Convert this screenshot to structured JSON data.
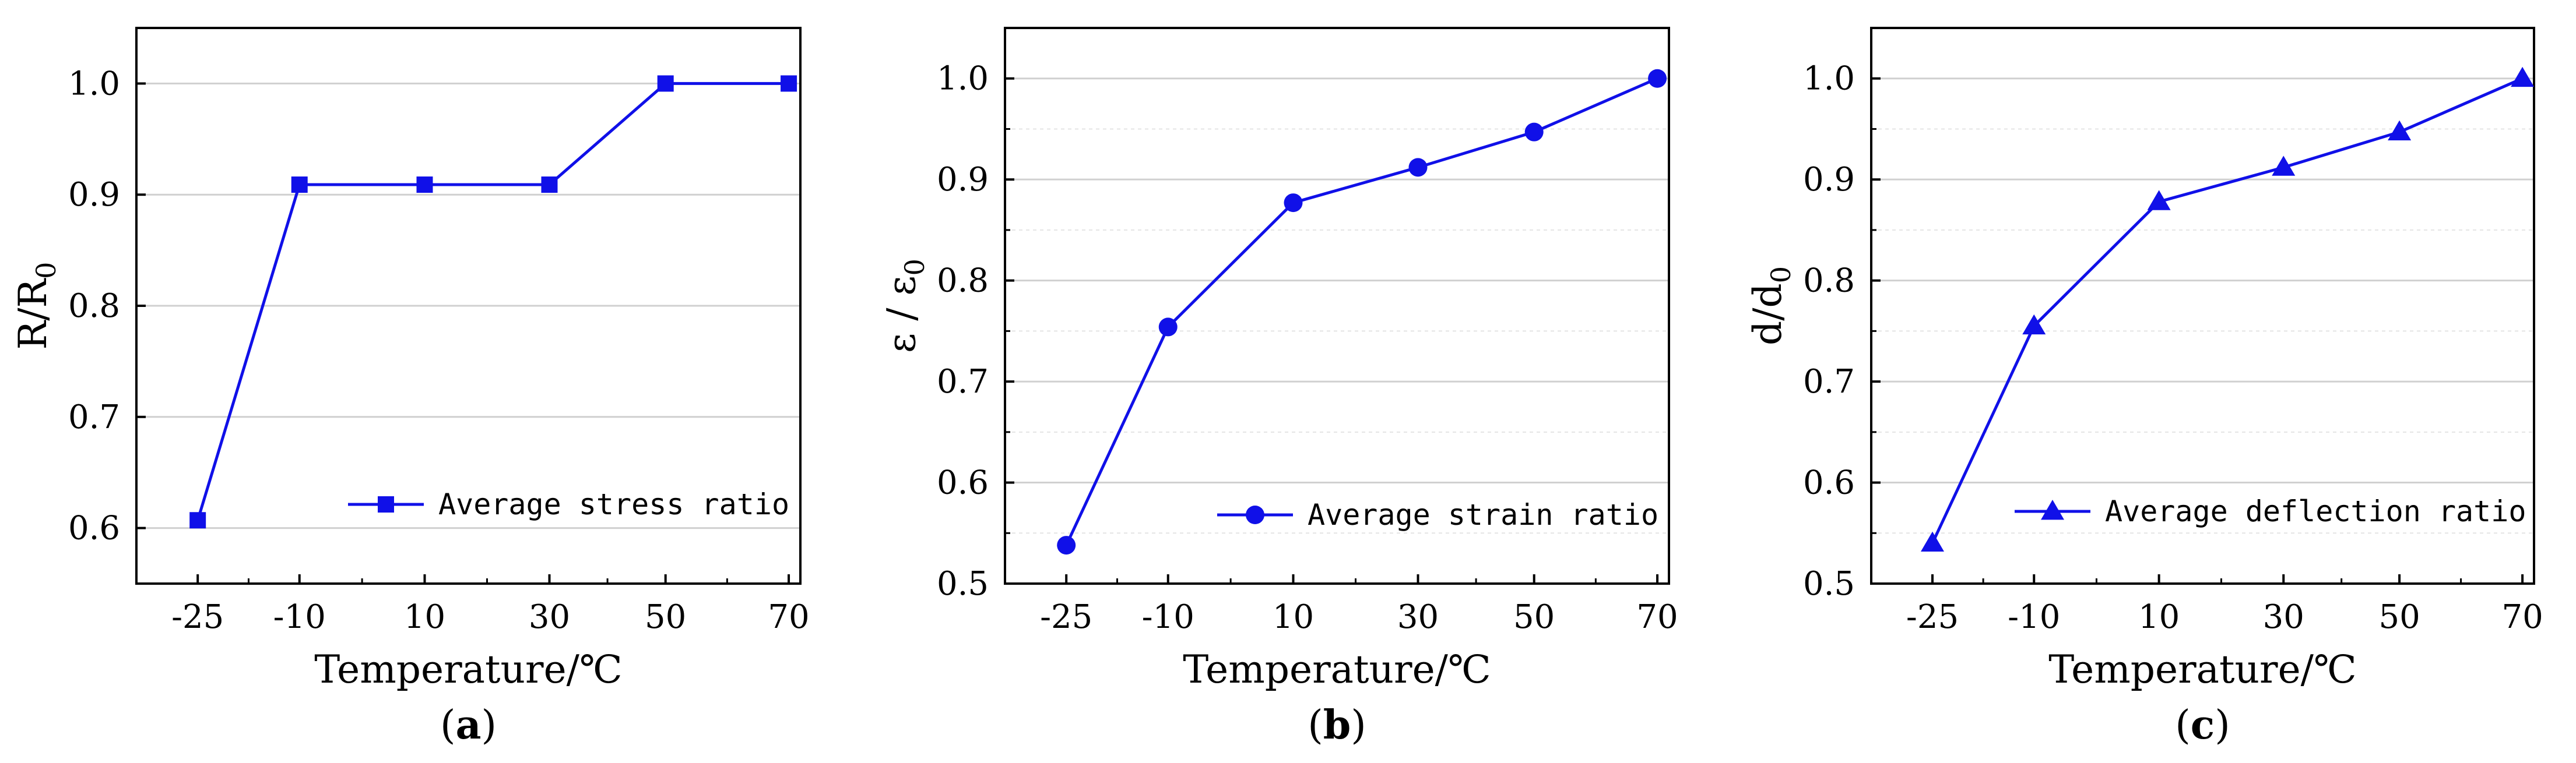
{
  "colors": {
    "series": "#1010e8",
    "grid": "#d0d0d0",
    "axis": "#000000"
  },
  "chart_data": [
    {
      "type": "line",
      "panel_label": "a",
      "categories": [
        "-25",
        "-10",
        "10",
        "30",
        "50",
        "70"
      ],
      "series": [
        {
          "name": "Average stress ratio",
          "marker": "square",
          "values": [
            0.607,
            0.909,
            0.909,
            0.909,
            1.0,
            1.0
          ]
        }
      ],
      "xlabel": "Temperature/℃",
      "ylabel_main": "R/R",
      "ylabel_sub": "0",
      "ylim": [
        0.55,
        1.05
      ],
      "yticks": [
        "0.6",
        "0.7",
        "0.8",
        "0.9",
        "1.0"
      ],
      "grid": true,
      "legend_position": "bottom-right"
    },
    {
      "type": "line",
      "panel_label": "b",
      "categories": [
        "-25",
        "-10",
        "10",
        "30",
        "50",
        "70"
      ],
      "series": [
        {
          "name": "Average strain ratio",
          "marker": "circle",
          "values": [
            0.538,
            0.754,
            0.877,
            0.912,
            0.947,
            1.0
          ]
        }
      ],
      "xlabel": "Temperature/℃",
      "ylabel_main": "ε / ε",
      "ylabel_sub": "0",
      "ylim": [
        0.5,
        1.05
      ],
      "yticks": [
        "0.5",
        "0.6",
        "0.7",
        "0.8",
        "0.9",
        "1.0"
      ],
      "grid": true,
      "legend_position": "bottom-right"
    },
    {
      "type": "line",
      "panel_label": "c",
      "categories": [
        "-25",
        "-10",
        "10",
        "30",
        "50",
        "70"
      ],
      "series": [
        {
          "name": "Average deflection ratio",
          "marker": "triangle",
          "values": [
            0.54,
            0.755,
            0.878,
            0.912,
            0.947,
            1.0
          ]
        }
      ],
      "xlabel": "Temperature/℃",
      "ylabel_main": "d/d",
      "ylabel_sub": "0",
      "ylim": [
        0.5,
        1.05
      ],
      "yticks": [
        "0.5",
        "0.6",
        "0.7",
        "0.8",
        "0.9",
        "1.0"
      ],
      "grid": true,
      "legend_position": "bottom-right"
    }
  ]
}
